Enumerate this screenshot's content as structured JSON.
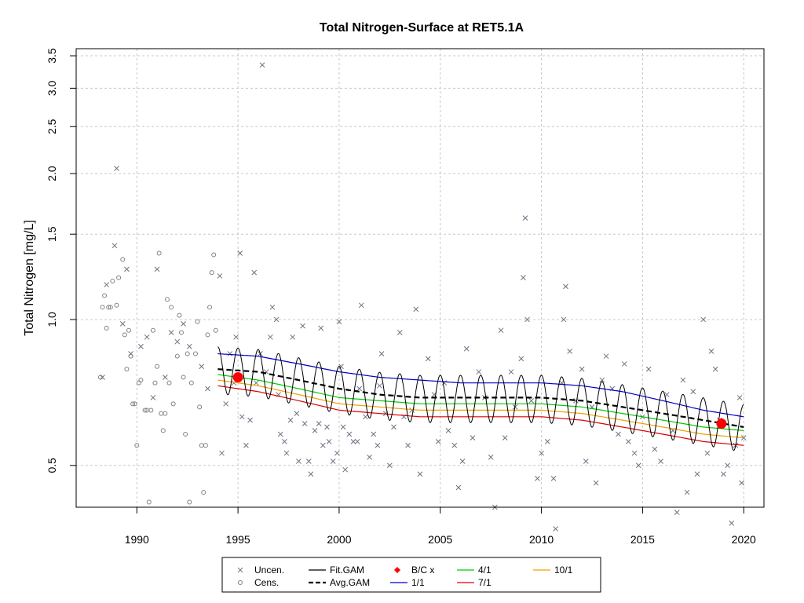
{
  "chart_data": {
    "type": "line",
    "title": "Total Nitrogen-Surface at RET5.1A",
    "xlabel": "",
    "ylabel": "Total Nitrogen [mg/L]",
    "xlim": [
      1987.0,
      2021.0
    ],
    "ylim": [
      0.41,
      3.62
    ],
    "y_scale": "log",
    "grid": true,
    "x_ticks": [
      1990,
      1995,
      2000,
      2005,
      2010,
      2015,
      2020
    ],
    "x_tick_labels": [
      "1990",
      "1995",
      "2000",
      "2005",
      "2010",
      "2015",
      "2020"
    ],
    "y_ticks": [
      0.5,
      1.0,
      1.5,
      2.0,
      2.5,
      3.0,
      3.5
    ],
    "y_tick_labels": [
      "0.5",
      "1.0",
      "1.5",
      "2.0",
      "2.5",
      "3.0",
      "3.5"
    ],
    "legend_position": "bottom-center",
    "legend": [
      {
        "label": "Uncen.",
        "symbol": "x",
        "color": "#6b7385"
      },
      {
        "label": "Cens.",
        "symbol": "circle",
        "color": "#808080"
      },
      {
        "label": "Fit.GAM",
        "symbol": "line",
        "color": "#000000"
      },
      {
        "label": "Avg.GAM",
        "symbol": "dash-thick",
        "color": "#000000"
      },
      {
        "label": "B/C x",
        "symbol": "diamond",
        "color": "#ff0000"
      },
      {
        "label": "1/1",
        "symbol": "line",
        "color": "#0000cc"
      },
      {
        "label": "4/1",
        "symbol": "line",
        "color": "#00cc00"
      },
      {
        "label": "7/1",
        "symbol": "line",
        "color": "#dd0000"
      },
      {
        "label": "10/1",
        "symbol": "line",
        "color": "#f0a000"
      }
    ],
    "colors": {
      "uncensored": "#6b7385",
      "censored": "#808080",
      "fit_gam": "#000000",
      "avg_gam": "#000000",
      "bc": "#ff0000",
      "jan1": "#0000cc",
      "apr1": "#00cc00",
      "jul1": "#dd0000",
      "oct1": "#f0a000",
      "grid": "#c8c8c8"
    },
    "uncensored_points": [
      [
        1988.3,
        0.76
      ],
      [
        1988.5,
        1.18
      ],
      [
        1988.9,
        1.42
      ],
      [
        1989.0,
        2.05
      ],
      [
        1989.3,
        0.98
      ],
      [
        1989.5,
        1.27
      ],
      [
        1989.7,
        0.85
      ],
      [
        1990.2,
        0.88
      ],
      [
        1990.5,
        0.92
      ],
      [
        1990.8,
        0.69
      ],
      [
        1991.0,
        1.27
      ],
      [
        1991.4,
        0.76
      ],
      [
        1991.7,
        0.94
      ],
      [
        1992.0,
        0.9
      ],
      [
        1992.3,
        0.98
      ],
      [
        1992.6,
        0.88
      ],
      [
        1993.2,
        0.8
      ],
      [
        1993.5,
        0.72
      ],
      [
        1994.1,
        1.23
      ],
      [
        1994.2,
        0.53
      ],
      [
        1994.4,
        0.67
      ],
      [
        1994.6,
        0.85
      ],
      [
        1994.8,
        0.74
      ],
      [
        1994.9,
        0.92
      ],
      [
        1995.1,
        1.37
      ],
      [
        1995.2,
        0.63
      ],
      [
        1995.4,
        0.55
      ],
      [
        1995.6,
        0.62
      ],
      [
        1995.8,
        1.25
      ],
      [
        1995.9,
        0.74
      ],
      [
        1996.1,
        0.85
      ],
      [
        1996.2,
        3.35
      ],
      [
        1996.4,
        0.78
      ],
      [
        1996.6,
        0.92
      ],
      [
        1996.7,
        1.06
      ],
      [
        1996.9,
        1.0
      ],
      [
        1997.0,
        0.7
      ],
      [
        1997.1,
        0.58
      ],
      [
        1997.3,
        0.56
      ],
      [
        1997.4,
        0.53
      ],
      [
        1997.6,
        0.62
      ],
      [
        1997.7,
        0.92
      ],
      [
        1997.9,
        0.64
      ],
      [
        1998.0,
        0.51
      ],
      [
        1998.2,
        0.97
      ],
      [
        1998.3,
        0.61
      ],
      [
        1998.5,
        0.51
      ],
      [
        1998.6,
        0.48
      ],
      [
        1998.8,
        0.59
      ],
      [
        1999.0,
        0.61
      ],
      [
        1999.1,
        0.96
      ],
      [
        1999.2,
        0.55
      ],
      [
        1999.4,
        0.6
      ],
      [
        1999.5,
        0.56
      ],
      [
        1999.7,
        0.51
      ],
      [
        1999.9,
        0.53
      ],
      [
        2000.0,
        0.99
      ],
      [
        2000.1,
        0.8
      ],
      [
        2000.2,
        0.6
      ],
      [
        2000.3,
        0.49
      ],
      [
        2000.5,
        0.58
      ],
      [
        2000.7,
        0.56
      ],
      [
        2000.9,
        0.56
      ],
      [
        2001.0,
        0.72
      ],
      [
        2001.1,
        1.07
      ],
      [
        2001.3,
        0.63
      ],
      [
        2001.5,
        0.52
      ],
      [
        2001.7,
        0.58
      ],
      [
        2001.9,
        0.55
      ],
      [
        2002.0,
        0.73
      ],
      [
        2002.1,
        0.85
      ],
      [
        2002.3,
        0.64
      ],
      [
        2002.5,
        0.5
      ],
      [
        2002.7,
        0.6
      ],
      [
        2003.0,
        0.94
      ],
      [
        2003.2,
        0.63
      ],
      [
        2003.4,
        0.55
      ],
      [
        2003.6,
        0.65
      ],
      [
        2003.8,
        1.05
      ],
      [
        2004.0,
        0.48
      ],
      [
        2004.4,
        0.83
      ],
      [
        2004.7,
        0.7
      ],
      [
        2004.9,
        0.56
      ],
      [
        2005.2,
        0.74
      ],
      [
        2005.4,
        0.59
      ],
      [
        2005.7,
        0.55
      ],
      [
        2005.9,
        0.45
      ],
      [
        2006.1,
        0.51
      ],
      [
        2006.3,
        0.87
      ],
      [
        2006.6,
        0.57
      ],
      [
        2006.9,
        0.78
      ],
      [
        2007.2,
        0.69
      ],
      [
        2007.5,
        0.52
      ],
      [
        2007.7,
        0.41
      ],
      [
        2008.0,
        0.95
      ],
      [
        2008.2,
        0.57
      ],
      [
        2008.5,
        0.78
      ],
      [
        2008.7,
        0.66
      ],
      [
        2009.0,
        0.83
      ],
      [
        2009.1,
        1.22
      ],
      [
        2009.2,
        1.62
      ],
      [
        2009.3,
        1.0
      ],
      [
        2009.5,
        0.68
      ],
      [
        2009.8,
        0.47
      ],
      [
        2010.0,
        0.53
      ],
      [
        2010.3,
        0.56
      ],
      [
        2010.6,
        0.47
      ],
      [
        2010.7,
        0.37
      ],
      [
        2011.0,
        0.74
      ],
      [
        2011.1,
        1.0
      ],
      [
        2011.2,
        1.17
      ],
      [
        2011.4,
        0.86
      ],
      [
        2011.7,
        0.68
      ],
      [
        2012.0,
        0.79
      ],
      [
        2012.2,
        0.51
      ],
      [
        2012.5,
        0.66
      ],
      [
        2012.7,
        0.46
      ],
      [
        2013.0,
        0.75
      ],
      [
        2013.2,
        0.84
      ],
      [
        2013.5,
        0.72
      ],
      [
        2013.8,
        0.58
      ],
      [
        2014.1,
        0.81
      ],
      [
        2014.3,
        0.56
      ],
      [
        2014.6,
        0.53
      ],
      [
        2014.8,
        0.5
      ],
      [
        2015.0,
        0.63
      ],
      [
        2015.3,
        0.79
      ],
      [
        2015.6,
        0.54
      ],
      [
        2015.9,
        0.51
      ],
      [
        2016.2,
        0.7
      ],
      [
        2016.5,
        0.59
      ],
      [
        2016.7,
        0.4
      ],
      [
        2017.0,
        0.75
      ],
      [
        2017.2,
        0.44
      ],
      [
        2017.5,
        0.71
      ],
      [
        2017.7,
        0.48
      ],
      [
        2018.0,
        1.0
      ],
      [
        2018.2,
        0.53
      ],
      [
        2018.4,
        0.86
      ],
      [
        2018.6,
        0.79
      ],
      [
        2018.8,
        0.62
      ],
      [
        2019.0,
        0.48
      ],
      [
        2019.2,
        0.5
      ],
      [
        2019.4,
        0.38
      ],
      [
        2019.6,
        0.55
      ],
      [
        2019.8,
        0.69
      ],
      [
        2019.9,
        0.46
      ],
      [
        2020.0,
        0.57
      ]
    ],
    "censored_points": [
      [
        1988.2,
        0.76
      ],
      [
        1988.3,
        1.06
      ],
      [
        1988.4,
        1.12
      ],
      [
        1988.5,
        0.96
      ],
      [
        1988.6,
        1.06
      ],
      [
        1988.7,
        1.06
      ],
      [
        1988.8,
        1.2
      ],
      [
        1989.0,
        1.07
      ],
      [
        1989.1,
        1.22
      ],
      [
        1989.3,
        1.33
      ],
      [
        1989.4,
        0.93
      ],
      [
        1989.5,
        0.79
      ],
      [
        1989.6,
        0.95
      ],
      [
        1989.7,
        0.84
      ],
      [
        1989.8,
        0.67
      ],
      [
        1989.9,
        0.67
      ],
      [
        1990.0,
        0.55
      ],
      [
        1990.1,
        0.74
      ],
      [
        1990.2,
        0.75
      ],
      [
        1990.4,
        0.65
      ],
      [
        1990.5,
        0.65
      ],
      [
        1990.6,
        0.42
      ],
      [
        1990.7,
        0.65
      ],
      [
        1990.8,
        0.95
      ],
      [
        1990.9,
        0.74
      ],
      [
        1991.0,
        0.8
      ],
      [
        1991.1,
        1.37
      ],
      [
        1991.2,
        0.64
      ],
      [
        1991.3,
        0.59
      ],
      [
        1991.4,
        0.64
      ],
      [
        1991.5,
        1.1
      ],
      [
        1991.6,
        0.74
      ],
      [
        1991.7,
        1.06
      ],
      [
        1991.8,
        0.67
      ],
      [
        1992.0,
        0.84
      ],
      [
        1992.1,
        1.02
      ],
      [
        1992.2,
        0.94
      ],
      [
        1992.3,
        0.76
      ],
      [
        1992.4,
        0.58
      ],
      [
        1992.5,
        0.85
      ],
      [
        1992.6,
        0.42
      ],
      [
        1992.7,
        0.74
      ],
      [
        1992.9,
        0.85
      ],
      [
        1993.0,
        0.99
      ],
      [
        1993.1,
        0.66
      ],
      [
        1993.2,
        0.55
      ],
      [
        1993.3,
        0.44
      ],
      [
        1993.4,
        0.55
      ],
      [
        1993.5,
        0.93
      ],
      [
        1993.6,
        1.06
      ],
      [
        1993.7,
        1.25
      ],
      [
        1993.8,
        1.36
      ],
      [
        1993.9,
        0.95
      ]
    ],
    "fit_gam_note": "seasonal oscillating fit line from 1994 to 2020",
    "avg_gam_note": "dashed smooth line",
    "bc_points": [
      [
        1995.0,
        0.76
      ],
      [
        2018.9,
        0.61
      ]
    ],
    "seasonal_lines": {
      "x": [
        1994.0,
        1996.0,
        1998.0,
        2000.0,
        2002.0,
        2004.0,
        2006.0,
        2008.0,
        2010.0,
        2012.0,
        2014.0,
        2016.0,
        2018.0,
        2020.0
      ],
      "jan1": [
        0.85,
        0.84,
        0.81,
        0.78,
        0.76,
        0.75,
        0.74,
        0.74,
        0.74,
        0.73,
        0.71,
        0.68,
        0.65,
        0.63
      ],
      "apr1": [
        0.77,
        0.75,
        0.72,
        0.69,
        0.68,
        0.67,
        0.67,
        0.67,
        0.67,
        0.66,
        0.64,
        0.62,
        0.6,
        0.59
      ],
      "oct1": [
        0.75,
        0.73,
        0.7,
        0.67,
        0.66,
        0.65,
        0.65,
        0.65,
        0.65,
        0.64,
        0.62,
        0.6,
        0.58,
        0.57
      ],
      "jul1": [
        0.73,
        0.71,
        0.68,
        0.65,
        0.64,
        0.63,
        0.63,
        0.63,
        0.63,
        0.62,
        0.6,
        0.58,
        0.56,
        0.55
      ]
    },
    "avg_gam": [
      0.79,
      0.78,
      0.75,
      0.72,
      0.7,
      0.69,
      0.69,
      0.69,
      0.69,
      0.68,
      0.66,
      0.64,
      0.62,
      0.6
    ],
    "fit_gam_amplitude": 0.07
  }
}
